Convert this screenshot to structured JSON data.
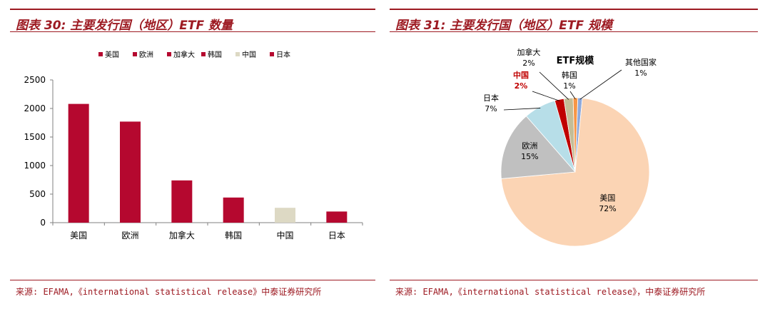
{
  "left": {
    "title": "图表 30: 主要发行国（地区）ETF 数量",
    "source": "来源: EFAMA,《international statistical release》中泰证券研究所"
  },
  "right": {
    "title": "图表 31: 主要发行国（地区）ETF 规模",
    "source": "来源: EFAMA,《international statistical release》，中泰证券研究所"
  },
  "colors": {
    "brand": "#9d1a22",
    "bar": "#b5082f",
    "bar_china": "#ddd9c4"
  },
  "chart_data": [
    {
      "type": "bar",
      "categories": [
        "美国",
        "欧洲",
        "加拿大",
        "韩国",
        "中国",
        "日本"
      ],
      "values": [
        2080,
        1770,
        740,
        440,
        260,
        195
      ],
      "ylim": [
        0,
        2500
      ],
      "yticks": [
        0,
        500,
        1000,
        1500,
        2000,
        2500
      ],
      "legend": [
        "美国",
        "欧洲",
        "加拿大",
        "韩国",
        "中国",
        "日本"
      ],
      "legend_position": "top",
      "grid": false
    },
    {
      "type": "pie",
      "title": "ETF规模",
      "slices": [
        {
          "label": "其他国家",
          "value": 1,
          "pct": "1%",
          "color": "#8ea9db"
        },
        {
          "label": "美国",
          "value": 72,
          "pct": "72%",
          "color": "#fbd4b4"
        },
        {
          "label": "欧洲",
          "value": 15,
          "pct": "15%",
          "color": "#c0c0c0"
        },
        {
          "label": "日本",
          "value": 7,
          "pct": "7%",
          "color": "#b7dee8"
        },
        {
          "label": "中国",
          "value": 2,
          "pct": "2%",
          "color": "#c00000",
          "highlight": true
        },
        {
          "label": "加拿大",
          "value": 2,
          "pct": "2%",
          "color": "#c4bd97"
        },
        {
          "label": "韩国",
          "value": 1,
          "pct": "1%",
          "color": "#f79646"
        }
      ]
    }
  ]
}
